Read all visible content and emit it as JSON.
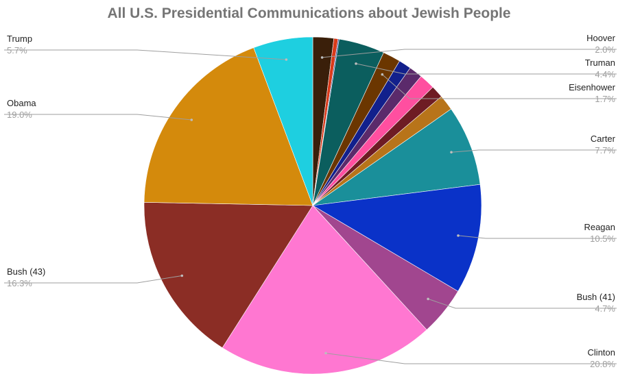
{
  "chart_data": {
    "type": "pie",
    "title": "All U.S. Presidential Communications about Jewish People",
    "legend": "labels on slices (leader lines)",
    "slices": [
      {
        "label": "Hoover",
        "value": 2.0,
        "pct_label": "2.0%",
        "color": "#3a1f0a",
        "labeled": true
      },
      {
        "label": "",
        "value": 0.4,
        "pct_label": "",
        "color": "#d93a1a",
        "labeled": false
      },
      {
        "label": "",
        "value": 0.1,
        "pct_label": "",
        "color": "#1f2d8c",
        "labeled": false
      },
      {
        "label": "Truman",
        "value": 4.4,
        "pct_label": "4.4%",
        "color": "#0b5e5e",
        "labeled": true
      },
      {
        "label": "Eisenhower",
        "value": 1.7,
        "pct_label": "1.7%",
        "color": "#6b3600",
        "labeled": true
      },
      {
        "label": "",
        "value": 1.2,
        "pct_label": "",
        "color": "#12208c",
        "labeled": false
      },
      {
        "label": "",
        "value": 1.3,
        "pct_label": "",
        "color": "#5b2a6b",
        "labeled": false
      },
      {
        "label": "",
        "value": 1.5,
        "pct_label": "",
        "color": "#ff4fa0",
        "labeled": false
      },
      {
        "label": "",
        "value": 1.2,
        "pct_label": "",
        "color": "#6e1c24",
        "labeled": false
      },
      {
        "label": "",
        "value": 1.5,
        "pct_label": "",
        "color": "#b8741a",
        "labeled": false
      },
      {
        "label": "Carter",
        "value": 7.7,
        "pct_label": "7.7%",
        "color": "#1a8f9a",
        "labeled": true
      },
      {
        "label": "Reagan",
        "value": 10.5,
        "pct_label": "10.5%",
        "color": "#0a32c8",
        "labeled": true
      },
      {
        "label": "Bush (41)",
        "value": 4.7,
        "pct_label": "4.7%",
        "color": "#a1468f",
        "labeled": true
      },
      {
        "label": "Clinton",
        "value": 20.8,
        "pct_label": "20.8%",
        "color": "#ff77d1",
        "labeled": true
      },
      {
        "label": "Bush (43)",
        "value": 16.3,
        "pct_label": "16.3%",
        "color": "#8b2d25",
        "labeled": true
      },
      {
        "label": "Obama",
        "value": 19.0,
        "pct_label": "19.0%",
        "color": "#d48a0c",
        "labeled": true
      },
      {
        "label": "Trump",
        "value": 5.7,
        "pct_label": "5.7%",
        "color": "#1ecfe0",
        "labeled": true
      }
    ]
  }
}
